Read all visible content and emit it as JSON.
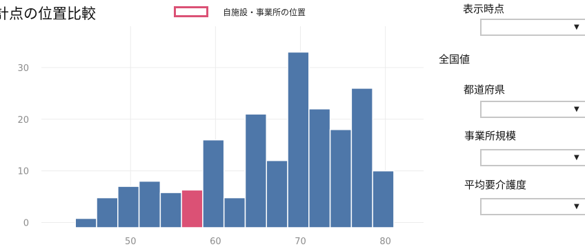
{
  "title": "計点の位置比較",
  "legend": {
    "label": "自施設・事業所の位置",
    "color": "#db5175"
  },
  "bar_color": "#4e77a9",
  "highlight_color": "#db5175",
  "controls": {
    "display_time": {
      "label": "表示時点",
      "value": ""
    },
    "national": {
      "label": "全国値"
    },
    "prefecture": {
      "label": "都道府県",
      "value": ""
    },
    "scale": {
      "label": "事業所規模",
      "value": ""
    },
    "care_level": {
      "label": "平均要介護度",
      "value": ""
    },
    "caret": "▼"
  },
  "chart_data": {
    "type": "bar",
    "title": "計点の位置比較",
    "xlabel": "",
    "ylabel": "",
    "bin_width": 2.5,
    "bins": [
      {
        "start": 43.5,
        "value": 0.8
      },
      {
        "start": 46.0,
        "value": 4.8
      },
      {
        "start": 48.5,
        "value": 7.0
      },
      {
        "start": 51.0,
        "value": 8.0
      },
      {
        "start": 53.5,
        "value": 5.8
      },
      {
        "start": 56.0,
        "value": 6.3,
        "highlight": true
      },
      {
        "start": 58.5,
        "value": 16.0
      },
      {
        "start": 61.0,
        "value": 4.8
      },
      {
        "start": 63.5,
        "value": 21.0
      },
      {
        "start": 66.0,
        "value": 12.0
      },
      {
        "start": 68.5,
        "value": 33.0
      },
      {
        "start": 71.0,
        "value": 22.0
      },
      {
        "start": 73.5,
        "value": 18.0
      },
      {
        "start": 76.0,
        "value": 26.0
      },
      {
        "start": 78.5,
        "value": 10.0
      }
    ],
    "xlim": [
      39.5,
      84.5
    ],
    "ylim": [
      -1,
      38
    ],
    "x_ticks": [
      50,
      60,
      70,
      80
    ],
    "y_ticks": [
      0,
      10,
      20,
      30
    ],
    "grid": true
  }
}
